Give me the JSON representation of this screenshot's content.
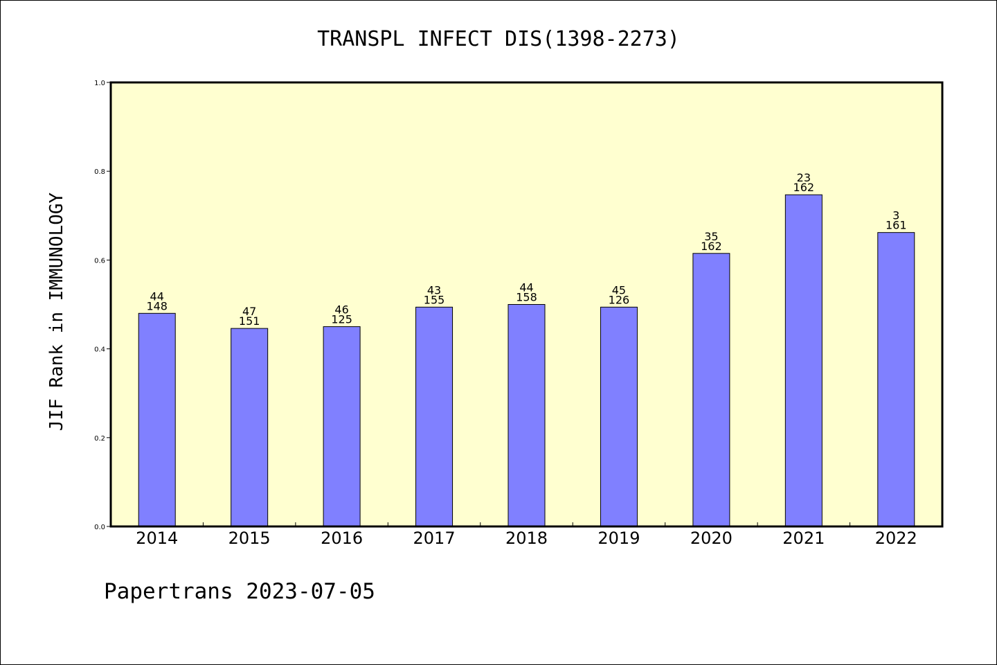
{
  "colors": {
    "plot_bg": "#ffffd0",
    "bar": "#8080ff",
    "bar_stroke": "#000000"
  },
  "chart_data": {
    "type": "bar",
    "title": "TRANSPL INFECT DIS(1398-2273)",
    "ylabel": "JIF Rank in IMMUNOLOGY",
    "xlabel": "",
    "ylim": [
      0,
      1.0
    ],
    "yticks": [
      "0.0",
      "0.2",
      "0.4",
      "0.6",
      "0.8",
      "1.0"
    ],
    "ytick_values": [
      0,
      0.2,
      0.4,
      0.6,
      0.8,
      1.0
    ],
    "categories": [
      "2014",
      "2015",
      "2016",
      "2017",
      "2018",
      "2019",
      "2020",
      "2021",
      "2022"
    ],
    "values": [
      0.48,
      0.446,
      0.45,
      0.494,
      0.5,
      0.494,
      0.615,
      0.747,
      0.662
    ],
    "rank": [
      "44",
      "47",
      "46",
      "43",
      "44",
      "45",
      "35",
      "23",
      "3"
    ],
    "total": [
      "148",
      "151",
      "125",
      "155",
      "158",
      "126",
      "162",
      "162",
      "161"
    ],
    "grid": false,
    "legend": "none"
  },
  "footer": "Papertrans 2023-07-05"
}
